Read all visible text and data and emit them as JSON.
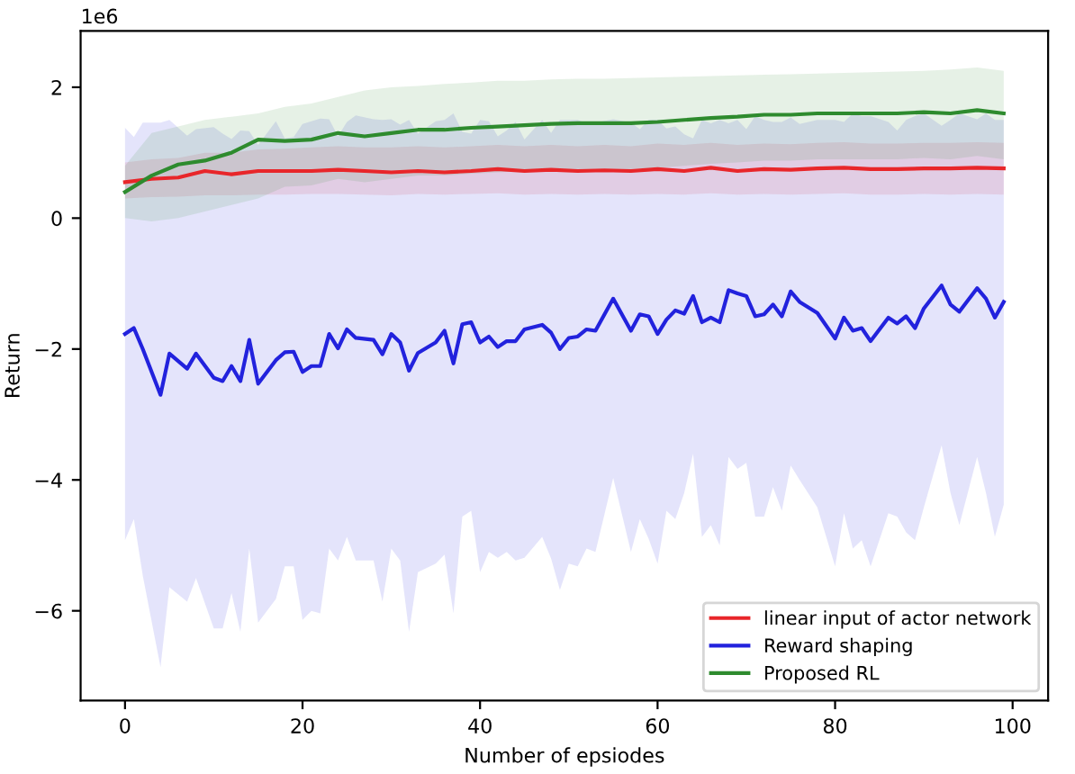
{
  "chart_data": {
    "type": "line",
    "xlabel": "Number of epsiodes",
    "ylabel": "Return",
    "annotations": [
      "1e6"
    ],
    "xlim": [
      -5,
      104
    ],
    "ylim": [
      -7.37,
      2.86
    ],
    "xticks": [
      0,
      20,
      40,
      60,
      80,
      100
    ],
    "yticks": [
      {
        "value": -6,
        "label": "−6"
      },
      {
        "value": -4,
        "label": "−4"
      },
      {
        "value": -2,
        "label": "−2"
      },
      0,
      2
    ],
    "grid": false,
    "legend": "bottom right",
    "line_style": "solid",
    "marker": "none",
    "series": [
      {
        "name": "linear input of actor network",
        "color": "#e8262a",
        "x": [
          0,
          3,
          6,
          9,
          12,
          15,
          18,
          21,
          24,
          27,
          30,
          33,
          36,
          39,
          42,
          45,
          48,
          51,
          54,
          57,
          60,
          63,
          66,
          69,
          72,
          75,
          78,
          81,
          84,
          87,
          90,
          93,
          96,
          99
        ],
        "values": [
          0.55,
          0.6,
          0.62,
          0.72,
          0.67,
          0.72,
          0.72,
          0.72,
          0.74,
          0.72,
          0.7,
          0.72,
          0.7,
          0.72,
          0.75,
          0.72,
          0.74,
          0.72,
          0.73,
          0.72,
          0.75,
          0.72,
          0.77,
          0.72,
          0.75,
          0.74,
          0.76,
          0.77,
          0.75,
          0.75,
          0.76,
          0.76,
          0.77,
          0.76
        ],
        "lower": [
          0.3,
          0.32,
          0.33,
          0.35,
          0.35,
          0.36,
          0.36,
          0.37,
          0.37,
          0.36,
          0.35,
          0.37,
          0.36,
          0.37,
          0.38,
          0.36,
          0.37,
          0.36,
          0.37,
          0.36,
          0.37,
          0.36,
          0.38,
          0.36,
          0.37,
          0.36,
          0.37,
          0.38,
          0.36,
          0.36,
          0.37,
          0.36,
          0.37,
          0.36
        ],
        "upper": [
          0.85,
          0.9,
          0.92,
          1.0,
          1.0,
          1.05,
          1.06,
          1.08,
          1.1,
          1.08,
          1.08,
          1.1,
          1.08,
          1.1,
          1.12,
          1.1,
          1.12,
          1.1,
          1.12,
          1.1,
          1.14,
          1.12,
          1.15,
          1.12,
          1.14,
          1.13,
          1.15,
          1.16,
          1.14,
          1.14,
          1.15,
          1.15,
          1.16,
          1.15
        ]
      },
      {
        "name": "Reward shaping",
        "color": "#2222dd",
        "x": [
          0,
          1,
          2,
          4,
          5,
          7,
          8,
          10,
          11,
          12,
          13,
          14,
          15,
          17,
          18,
          19,
          20,
          21,
          22,
          23,
          24,
          25,
          26,
          28,
          29,
          30,
          31,
          32,
          33,
          35,
          36,
          37,
          38,
          39,
          40,
          41,
          42,
          43,
          44,
          45,
          47,
          48,
          49,
          50,
          51,
          52,
          53,
          55,
          57,
          58,
          59,
          60,
          61,
          62,
          63,
          64,
          65,
          66,
          67,
          68,
          69,
          70,
          71,
          72,
          73,
          74,
          75,
          76,
          78,
          80,
          81,
          82,
          83,
          84,
          86,
          87,
          88,
          89,
          90,
          92,
          93,
          94,
          96,
          97,
          98,
          99
        ],
        "values": [
          -1.77,
          -1.68,
          -2.0,
          -2.7,
          -2.07,
          -2.3,
          -2.07,
          -2.44,
          -2.49,
          -2.26,
          -2.49,
          -1.86,
          -2.53,
          -2.17,
          -2.05,
          -2.04,
          -2.35,
          -2.26,
          -2.26,
          -1.77,
          -1.99,
          -1.7,
          -1.83,
          -1.86,
          -2.08,
          -1.77,
          -1.9,
          -2.33,
          -2.06,
          -1.9,
          -1.72,
          -2.22,
          -1.62,
          -1.59,
          -1.9,
          -1.81,
          -1.97,
          -1.88,
          -1.88,
          -1.7,
          -1.63,
          -1.75,
          -2.0,
          -1.83,
          -1.81,
          -1.7,
          -1.72,
          -1.23,
          -1.72,
          -1.47,
          -1.5,
          -1.77,
          -1.55,
          -1.41,
          -1.46,
          -1.19,
          -1.59,
          -1.52,
          -1.59,
          -1.1,
          -1.15,
          -1.19,
          -1.5,
          -1.47,
          -1.32,
          -1.5,
          -1.12,
          -1.28,
          -1.45,
          -1.84,
          -1.52,
          -1.72,
          -1.68,
          -1.88,
          -1.52,
          -1.61,
          -1.5,
          -1.68,
          -1.38,
          -1.03,
          -1.32,
          -1.43,
          -1.07,
          -1.23,
          -1.52,
          -1.28
        ],
        "lower": [
          -4.92,
          -4.6,
          -5.46,
          -6.86,
          -5.64,
          -5.86,
          -5.5,
          -6.27,
          -6.27,
          -5.73,
          -6.32,
          -5.05,
          -6.18,
          -5.82,
          -5.32,
          -5.32,
          -6.14,
          -6.0,
          -6.04,
          -5.05,
          -5.23,
          -4.87,
          -5.23,
          -5.23,
          -5.86,
          -5.05,
          -5.23,
          -6.32,
          -5.41,
          -5.28,
          -5.14,
          -6.04,
          -4.56,
          -4.47,
          -5.41,
          -5.1,
          -5.19,
          -5.1,
          -5.23,
          -5.19,
          -4.87,
          -5.2,
          -5.68,
          -5.28,
          -5.32,
          -5.05,
          -5.1,
          -3.97,
          -5.1,
          -4.6,
          -4.9,
          -5.28,
          -4.47,
          -4.6,
          -4.2,
          -3.6,
          -4.87,
          -4.69,
          -5.0,
          -3.65,
          -3.83,
          -3.74,
          -4.56,
          -4.56,
          -4.11,
          -4.47,
          -3.78,
          -4.0,
          -4.42,
          -5.32,
          -4.51,
          -5.05,
          -4.92,
          -5.32,
          -4.51,
          -4.56,
          -4.8,
          -4.92,
          -4.42,
          -3.47,
          -4.2,
          -4.69,
          -3.65,
          -4.2,
          -4.87,
          -4.38
        ],
        "upper": [
          1.38,
          1.24,
          1.46,
          1.46,
          1.5,
          1.26,
          1.36,
          1.39,
          1.29,
          1.21,
          1.34,
          1.33,
          1.12,
          1.48,
          1.22,
          1.24,
          1.44,
          1.48,
          1.52,
          1.51,
          1.25,
          1.47,
          1.57,
          1.51,
          1.5,
          1.51,
          1.43,
          1.5,
          1.29,
          1.48,
          1.5,
          1.6,
          1.32,
          1.29,
          1.5,
          1.48,
          1.25,
          1.34,
          1.47,
          1.2,
          1.5,
          1.3,
          1.5,
          1.5,
          1.5,
          1.45,
          1.46,
          1.51,
          1.46,
          1.36,
          1.5,
          1.5,
          1.37,
          1.4,
          1.28,
          1.22,
          1.5,
          1.45,
          1.5,
          1.45,
          1.5,
          1.36,
          1.56,
          1.5,
          1.47,
          1.47,
          1.54,
          1.44,
          1.5,
          1.5,
          1.47,
          1.6,
          1.56,
          1.56,
          1.47,
          1.34,
          1.5,
          1.56,
          1.6,
          1.41,
          1.5,
          1.6,
          1.51,
          1.6,
          1.5,
          1.5
        ]
      },
      {
        "name": "Proposed RL",
        "color": "#2e8b2e",
        "x": [
          0,
          3,
          6,
          9,
          12,
          15,
          18,
          21,
          24,
          27,
          30,
          33,
          36,
          39,
          42,
          45,
          48,
          51,
          54,
          57,
          60,
          63,
          66,
          69,
          72,
          75,
          78,
          81,
          84,
          87,
          90,
          93,
          96,
          99
        ],
        "values": [
          0.4,
          0.65,
          0.82,
          0.88,
          1.0,
          1.2,
          1.18,
          1.2,
          1.3,
          1.25,
          1.3,
          1.35,
          1.35,
          1.38,
          1.4,
          1.42,
          1.44,
          1.45,
          1.45,
          1.45,
          1.47,
          1.5,
          1.53,
          1.55,
          1.58,
          1.58,
          1.6,
          1.6,
          1.6,
          1.6,
          1.62,
          1.6,
          1.65,
          1.6
        ],
        "lower": [
          0.0,
          -0.05,
          0.0,
          0.1,
          0.2,
          0.3,
          0.48,
          0.5,
          0.6,
          0.55,
          0.6,
          0.65,
          0.65,
          0.68,
          0.7,
          0.72,
          0.74,
          0.75,
          0.75,
          0.75,
          0.77,
          0.8,
          0.83,
          0.85,
          0.88,
          0.88,
          0.9,
          0.9,
          0.9,
          0.9,
          0.92,
          0.9,
          0.95,
          0.9
        ],
        "upper": [
          0.8,
          1.3,
          1.4,
          1.5,
          1.55,
          1.6,
          1.7,
          1.75,
          1.85,
          1.95,
          2.0,
          2.02,
          2.05,
          2.07,
          2.1,
          2.1,
          2.12,
          2.13,
          2.13,
          2.14,
          2.15,
          2.16,
          2.17,
          2.18,
          2.19,
          2.2,
          2.21,
          2.22,
          2.23,
          2.24,
          2.25,
          2.27,
          2.3,
          2.25
        ]
      }
    ]
  }
}
